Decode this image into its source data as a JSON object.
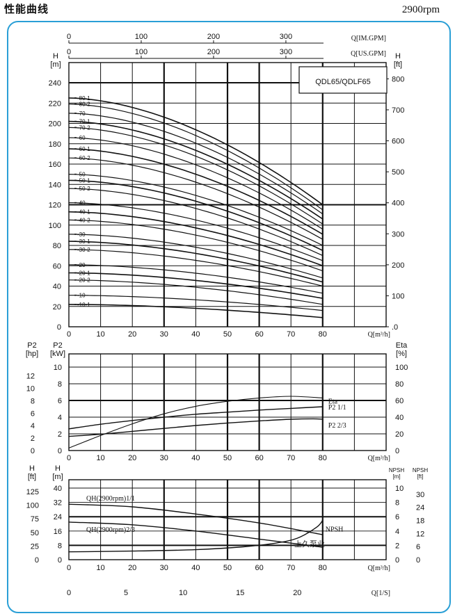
{
  "header": {
    "title": "性能曲线",
    "speed": "2900rpm"
  },
  "chart_data": [
    {
      "id": "head-chart",
      "type": "line",
      "model_label": "QDL65/QDLF65",
      "top_axes": [
        {
          "label": "Q[IM.GPM]",
          "ticks": [
            "0",
            "100",
            "200",
            "300"
          ],
          "max_units": 352
        },
        {
          "label": "Q[US.GPM]",
          "ticks": [
            "0",
            "100",
            "200",
            "300"
          ],
          "max_units": 352
        }
      ],
      "xlabel": "Q[m³/h]",
      "xlim": [
        0,
        100
      ],
      "xticks": [
        "0",
        "10",
        "20",
        "30",
        "40",
        "50",
        "60",
        "70",
        "80"
      ],
      "ylabel_left": [
        "H",
        "[m]"
      ],
      "ylim": [
        0,
        240
      ],
      "yticks_left": [
        "0",
        "20",
        "40",
        "60",
        "80",
        "100",
        "120",
        "140",
        "160",
        "180",
        "200",
        "220",
        "240"
      ],
      "ylabel_right": [
        "H",
        "[ft]"
      ],
      "yticks_right": [
        ".0",
        "100",
        "200",
        "300",
        "400",
        "500",
        "600",
        "700",
        "800"
      ],
      "series": [
        {
          "name": "80-1",
          "h0": 225,
          "h80": 120
        },
        {
          "name": "80-2",
          "h0": 219,
          "h80": 115
        },
        {
          "name": "70",
          "h0": 210,
          "h80": 111
        },
        {
          "name": "70-1",
          "h0": 202,
          "h80": 106
        },
        {
          "name": "70-2",
          "h0": 196,
          "h80": 101
        },
        {
          "name": "60",
          "h0": 186,
          "h80": 96
        },
        {
          "name": "60-1",
          "h0": 175,
          "h80": 91
        },
        {
          "name": "60-2",
          "h0": 166,
          "h80": 86
        },
        {
          "name": "50",
          "h0": 150,
          "h80": 80
        },
        {
          "name": "50-1",
          "h0": 144,
          "h80": 75
        },
        {
          "name": "50-2",
          "h0": 136,
          "h80": 70
        },
        {
          "name": "40",
          "h0": 122,
          "h80": 65
        },
        {
          "name": "40-1",
          "h0": 113,
          "h80": 60
        },
        {
          "name": "40-2",
          "h0": 105,
          "h80": 55
        },
        {
          "name": "30",
          "h0": 91,
          "h80": 48
        },
        {
          "name": "30-1",
          "h0": 84,
          "h80": 44
        },
        {
          "name": "30-2",
          "h0": 76,
          "h80": 40
        },
        {
          "name": "20",
          "h0": 61,
          "h80": 33
        },
        {
          "name": "20-1",
          "h0": 53,
          "h80": 28
        },
        {
          "name": "20-2",
          "h0": 46,
          "h80": 22
        },
        {
          "name": "10",
          "h0": 31,
          "h80": 16
        },
        {
          "name": "10-1",
          "h0": 22,
          "h80": 9
        }
      ]
    },
    {
      "id": "power-chart",
      "type": "line",
      "xlabel": "Q[m³/h]",
      "xlim": [
        0,
        100
      ],
      "xticks": [
        "0",
        "10",
        "20",
        "30",
        "40",
        "50",
        "60",
        "70",
        "80"
      ],
      "ylabel_left_hp": [
        "P2",
        "[hp]"
      ],
      "yticks_hp": [
        "0",
        "2",
        "4",
        "6",
        "8",
        "10",
        "12"
      ],
      "ylabel_left_kw": [
        "P2",
        "[kW]"
      ],
      "ylim_kw": [
        0,
        10
      ],
      "yticks_kw": [
        "0",
        "2",
        "4",
        "6",
        "8",
        "10"
      ],
      "ylabel_right": [
        "Eta",
        "[%]"
      ],
      "yticks_right": [
        "0",
        "20",
        "40",
        "60",
        "80",
        "100"
      ],
      "series": [
        {
          "name": "Eta",
          "unit": "%",
          "x": [
            0,
            10,
            20,
            30,
            40,
            50,
            60,
            70,
            80
          ],
          "y": [
            3,
            18,
            32,
            44,
            53,
            59,
            63,
            65,
            63
          ]
        },
        {
          "name": "P2 1/1",
          "unit": "kW",
          "x": [
            0,
            10,
            20,
            30,
            40,
            50,
            60,
            70,
            80
          ],
          "y": [
            2.6,
            3.15,
            3.6,
            4.0,
            4.35,
            4.6,
            4.85,
            5.05,
            5.25
          ]
        },
        {
          "name": "P2 2/3",
          "unit": "kW",
          "x": [
            0,
            10,
            20,
            30,
            40,
            50,
            60,
            70,
            77,
            80
          ],
          "y": [
            1.7,
            1.95,
            2.3,
            2.65,
            3.0,
            3.3,
            3.55,
            3.75,
            3.8,
            3.75
          ]
        }
      ]
    },
    {
      "id": "npsh-chart",
      "type": "line",
      "xlabel": "Q[m³/h]",
      "xlim": [
        0,
        100
      ],
      "xticks": [
        "0",
        "10",
        "20",
        "30",
        "40",
        "50",
        "60",
        "70",
        "80"
      ],
      "x2label": "Q[1/S]",
      "x2ticks": [
        "0",
        "5",
        "10",
        "15",
        "20"
      ],
      "ylabel_left_ft": [
        "H",
        "[ft]"
      ],
      "yticks_ft": [
        "0",
        "25",
        "50",
        "75",
        "100",
        "125"
      ],
      "ylabel_left_m": [
        "H",
        "[m]"
      ],
      "ylim_m": [
        0,
        40
      ],
      "yticks_m": [
        "0",
        "8",
        "16",
        "24",
        "32",
        "40"
      ],
      "ylabel_right_m": [
        "NPSH",
        "[m]"
      ],
      "yticks_right_m": [
        "0",
        "2",
        "4",
        "6",
        "8",
        "10"
      ],
      "ylabel_right_ft": [
        "NPSH",
        "[ft]"
      ],
      "yticks_right_ft": [
        "0",
        "6",
        "12",
        "18",
        "24",
        "30"
      ],
      "series": [
        {
          "name": "QH(2900rpm)1/1",
          "unit": "m",
          "x": [
            0,
            20,
            40,
            60,
            80
          ],
          "y": [
            31,
            29.5,
            25.5,
            20.5,
            14
          ]
        },
        {
          "name": "QH(2900rpm)2/3",
          "unit": "m",
          "x": [
            0,
            20,
            40,
            60,
            80
          ],
          "y": [
            21,
            19.5,
            16,
            11.5,
            7
          ]
        },
        {
          "name": "NPSH",
          "unit": "m",
          "x": [
            0,
            20,
            40,
            55,
            65,
            72,
            78,
            80
          ],
          "y": [
            1.1,
            1.2,
            1.4,
            1.8,
            2.3,
            3.0,
            4.5,
            5.5
          ]
        }
      ]
    }
  ],
  "watermark": "上久泵业"
}
